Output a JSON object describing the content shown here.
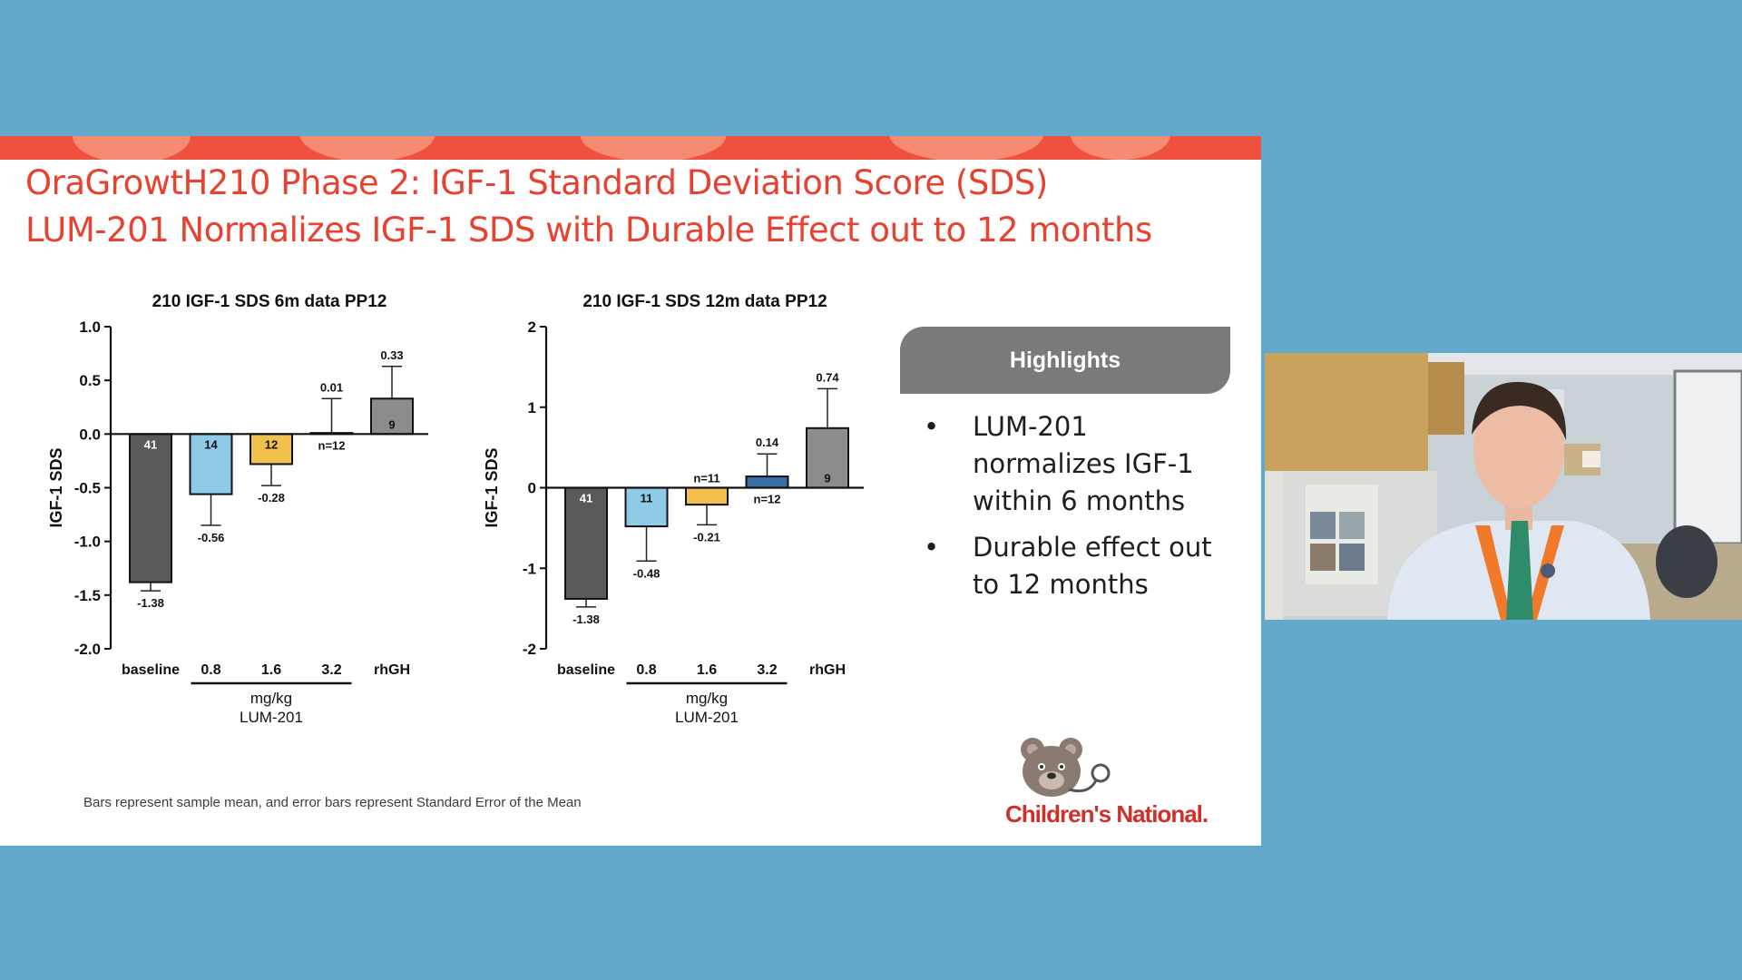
{
  "slide": {
    "title_line1": "OraGrowtH210 Phase 2: IGF-1 Standard Deviation Score (SDS)",
    "title_line2": "LUM-201 Normalizes IGF-1 SDS with Durable Effect out to 12 months",
    "footnote": "Bars represent sample mean, and error bars represent Standard Error of the Mean",
    "highlights": {
      "header": "Highlights",
      "bullet_glyph": "•",
      "items": [
        "LUM-201 normalizes IGF-1 within 6 months",
        "Durable effect out to 12 months"
      ]
    },
    "logo": {
      "text": "Children's National.",
      "icon": "teddy-bear-stethoscope-icon"
    },
    "colors": {
      "accent": "#e8412f",
      "band": "#f0513e",
      "background": "#62a9cb"
    }
  },
  "video": {
    "description_icon": "presenter-webcam-feed"
  },
  "chart_data": [
    {
      "type": "bar",
      "title": "210 IGF-1 SDS 6m data PP12",
      "ylabel": "IGF-1 SDS",
      "xlabel_line1": "mg/kg",
      "xlabel_line2": "LUM-201",
      "ylim": [
        -2.0,
        1.0
      ],
      "yticks": [
        "1.0",
        "0.5",
        "0.0",
        "-0.5",
        "-1.0",
        "-1.5",
        "-2.0"
      ],
      "ytick_values": [
        1.0,
        0.5,
        0.0,
        -0.5,
        -1.0,
        -1.5,
        -2.0
      ],
      "categories": [
        "baseline",
        "0.8",
        "1.6",
        "3.2",
        "rhGH"
      ],
      "values": [
        -1.38,
        -0.56,
        -0.28,
        0.01,
        0.33
      ],
      "errors": [
        0.08,
        0.29,
        0.2,
        0.32,
        0.3
      ],
      "value_labels": [
        "-1.38",
        "-0.56",
        "-0.28",
        "0.01",
        "0.33"
      ],
      "n_labels": [
        "41",
        "14",
        "12",
        "n=12",
        "9"
      ],
      "colors": [
        "#595959",
        "#8fcbe8",
        "#f2c04d",
        "#ffffff",
        "#8c8c8c"
      ]
    },
    {
      "type": "bar",
      "title": "210 IGF-1 SDS 12m data PP12",
      "ylabel": "IGF-1 SDS",
      "xlabel_line1": "mg/kg",
      "xlabel_line2": "LUM-201",
      "ylim": [
        -2,
        2
      ],
      "yticks": [
        "2",
        "1",
        "0",
        "-1",
        "-2"
      ],
      "ytick_values": [
        2,
        1,
        0,
        -1,
        -2
      ],
      "categories": [
        "baseline",
        "0.8",
        "1.6",
        "3.2",
        "rhGH"
      ],
      "values": [
        -1.38,
        -0.48,
        -0.21,
        0.14,
        0.74
      ],
      "errors": [
        0.1,
        0.43,
        0.25,
        0.28,
        0.49
      ],
      "value_labels": [
        "-1.38",
        "-0.48",
        "-0.21",
        "0.14",
        "0.74"
      ],
      "n_labels": [
        "41",
        "11",
        "n=11",
        "n=12",
        "9"
      ],
      "colors": [
        "#595959",
        "#8fcbe8",
        "#f2c04d",
        "#3a6ea5",
        "#8c8c8c"
      ]
    }
  ]
}
